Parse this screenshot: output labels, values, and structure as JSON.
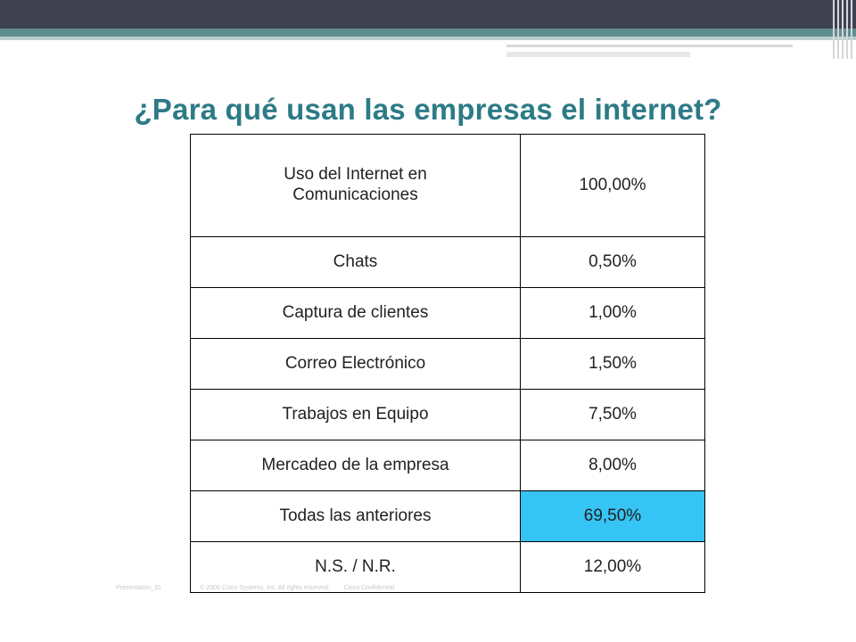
{
  "slide": {
    "title": "¿Para qué usan las empresas el internet?"
  },
  "table": {
    "header": {
      "label": "Uso del Internet en Comunicaciones",
      "value": "100,00%"
    },
    "rows": [
      {
        "label": "Chats",
        "value": "0,50%"
      },
      {
        "label": "Captura de clientes",
        "value": "1,00%"
      },
      {
        "label": "Correo Electrónico",
        "value": "1,50%"
      },
      {
        "label": "Trabajos en Equipo",
        "value": "7,50%"
      },
      {
        "label": "Mercadeo de la empresa",
        "value": "8,00%"
      },
      {
        "label": "Todas las anteriores",
        "value": "69,50%",
        "highlight": true
      },
      {
        "label": "N.S. / N.R.",
        "value": "12,00%"
      }
    ],
    "highlight_color": "#35c4f4"
  },
  "footer": {
    "presentation_id": "Presentation_ID",
    "copyright": "© 2006 Cisco Systems, Inc. All rights reserved.",
    "confidential": "Cisco Confidential"
  },
  "colors": {
    "title": "#2c7b86",
    "top_band": "#3f4150",
    "teal_band": "#5f8e8d"
  }
}
